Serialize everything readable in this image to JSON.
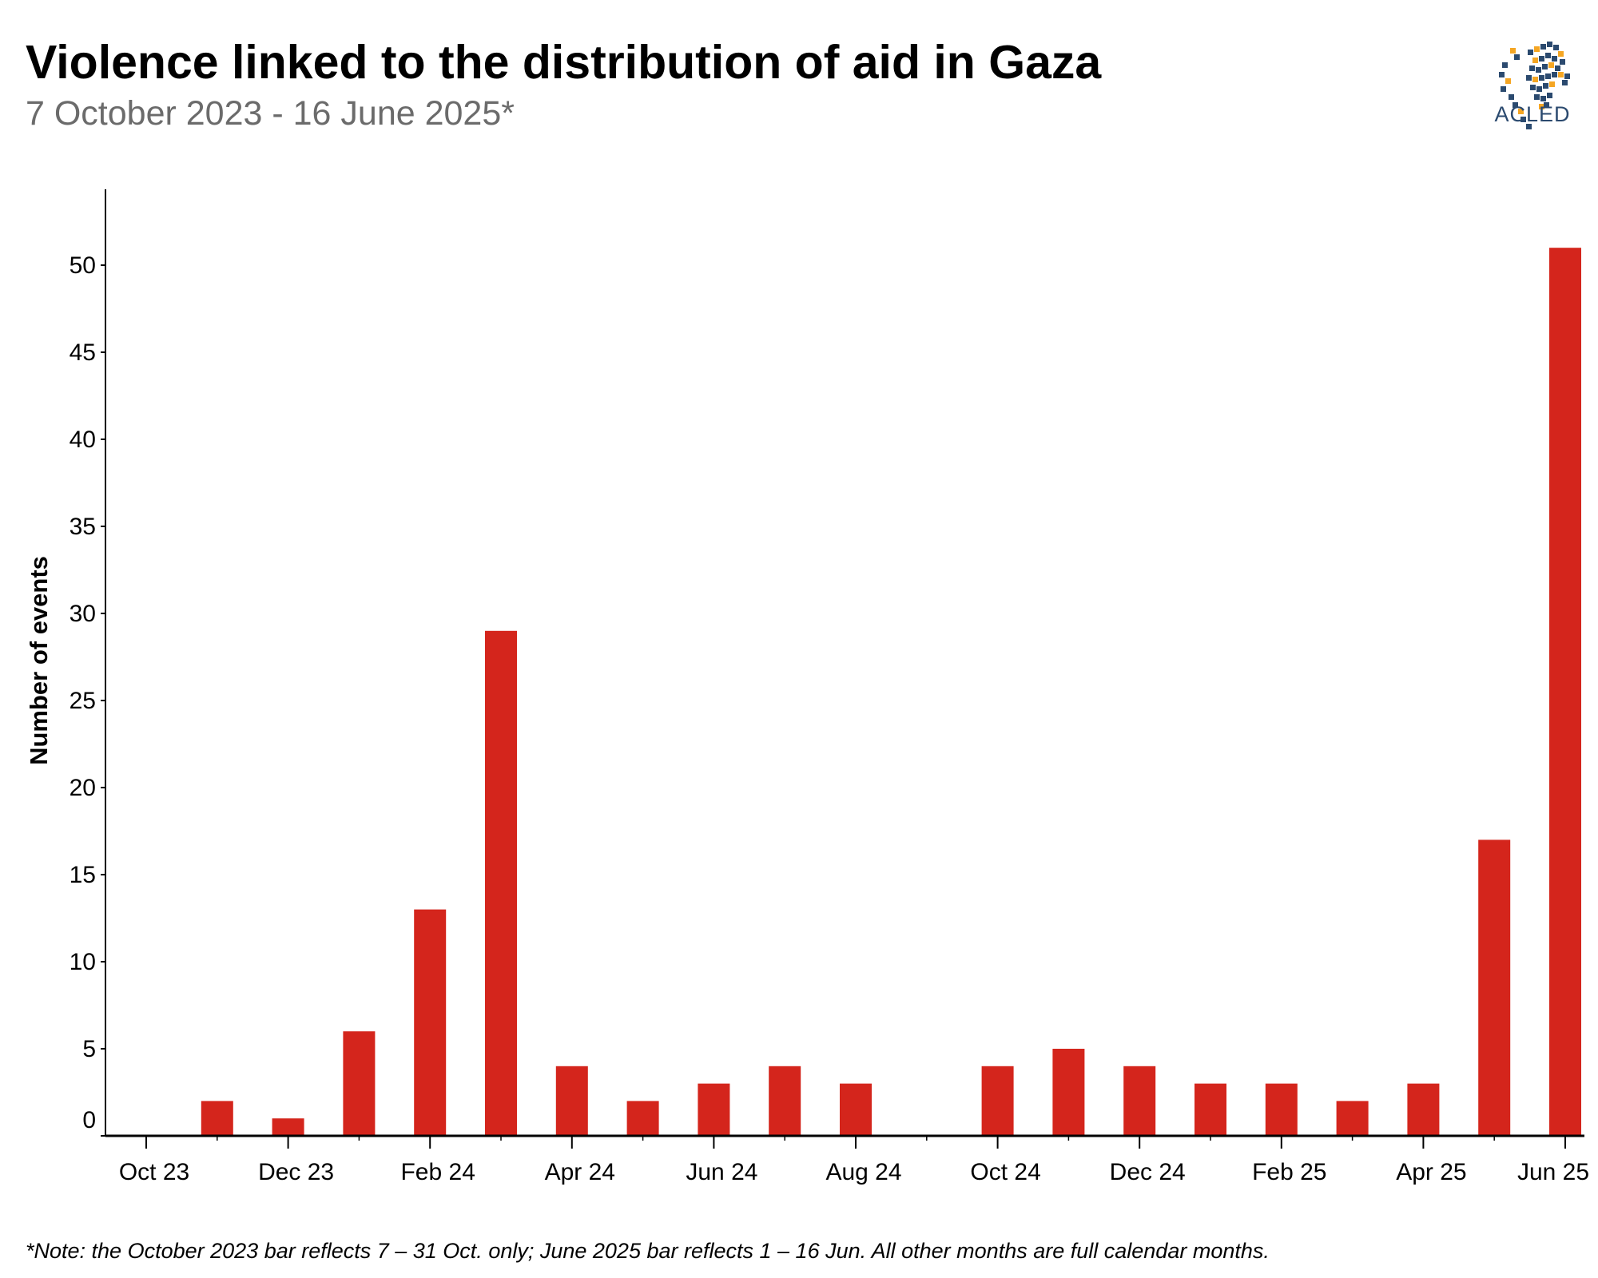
{
  "title": "Violence linked to the distribution of aid in Gaza",
  "subtitle": "7 October 2023 - 16 June 2025*",
  "logo": {
    "text": "ACLED",
    "colors": {
      "navy": "#2b4a6f",
      "orange": "#f5a623"
    }
  },
  "note": "*Note: the October 2023 bar reflects 7 – 31 Oct. only; June 2025 bar reflects 1 – 16 Jun. All other months are full calendar months.",
  "chart_data": {
    "type": "bar",
    "title": "Violence linked to the distribution of aid in Gaza",
    "subtitle": "7 October 2023 - 16 June 2025*",
    "xlabel": "",
    "ylabel": "Number of events",
    "ylim": [
      0,
      53
    ],
    "yticks": [
      0,
      5,
      10,
      15,
      20,
      25,
      30,
      35,
      40,
      45,
      50
    ],
    "grid": false,
    "bar_color": "#d4251c",
    "categories": [
      "Oct 23",
      "Nov 23",
      "Dec 23",
      "Jan 24",
      "Feb 24",
      "Mar 24",
      "Apr 24",
      "May 24",
      "Jun 24",
      "Jul 24",
      "Aug 24",
      "Sep 24",
      "Oct 24",
      "Nov 24",
      "Dec 24",
      "Jan 25",
      "Feb 25",
      "Mar 25",
      "Apr 25",
      "May 25",
      "Jun 25"
    ],
    "values": [
      0,
      2,
      1,
      6,
      13,
      29,
      4,
      2,
      3,
      4,
      3,
      0,
      4,
      5,
      4,
      3,
      3,
      2,
      3,
      17,
      51
    ],
    "xtick_labels": [
      "Oct 23",
      "Dec 23",
      "Feb 24",
      "Apr 24",
      "Jun 24",
      "Aug 24",
      "Oct 24",
      "Dec 24",
      "Feb 25",
      "Apr 25",
      "Jun 25"
    ]
  }
}
